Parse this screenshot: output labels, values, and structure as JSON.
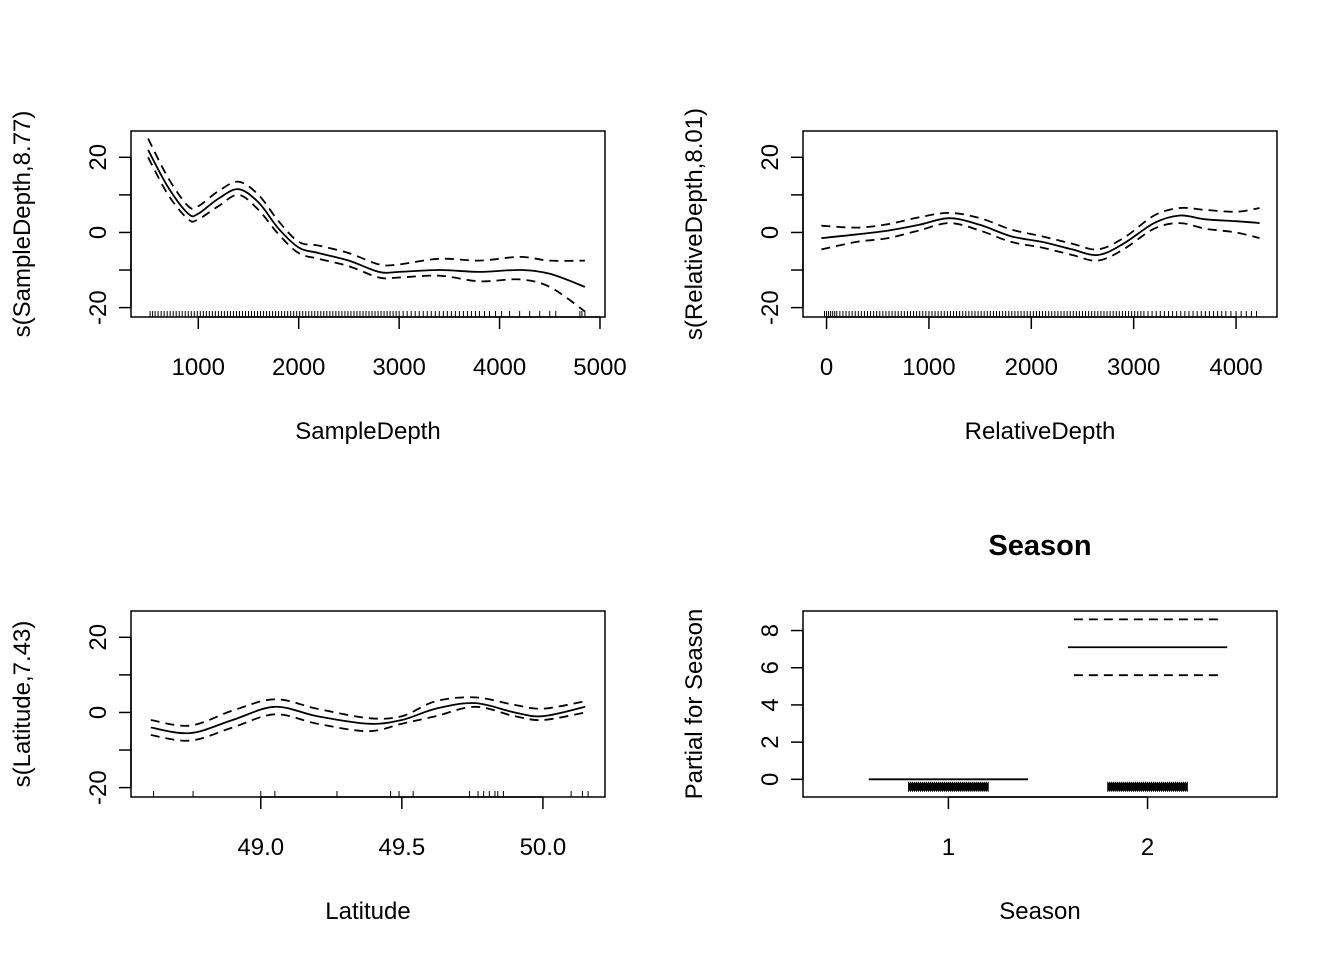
{
  "chart_data": [
    {
      "type": "line",
      "title": "",
      "xlabel": "SampleDepth",
      "ylabel": "s(SampleDepth,8.77)",
      "xlim": [
        330,
        5050
      ],
      "ylim": [
        -22.5,
        27
      ],
      "xticks": [
        1000,
        2000,
        3000,
        4000,
        5000
      ],
      "yticks": [
        -20,
        -10,
        0,
        10,
        20
      ],
      "ytick_labels": [
        -20,
        0,
        20
      ],
      "x": [
        500,
        700,
        900,
        1000,
        1200,
        1400,
        1600,
        1800,
        2000,
        2200,
        2500,
        2800,
        3000,
        3400,
        3800,
        4200,
        4500,
        4850
      ],
      "fit": [
        22,
        12,
        5,
        5,
        9,
        11.5,
        8,
        1,
        -4,
        -5.5,
        -7.5,
        -10.5,
        -10.5,
        -10,
        -10.5,
        -10,
        -11,
        -14.5
      ],
      "upper": [
        25,
        14.5,
        7,
        7,
        11,
        13.5,
        10,
        3,
        -2.5,
        -3.5,
        -5.5,
        -8.5,
        -8.5,
        -7,
        -7.5,
        -6.5,
        -7.5,
        -7.5
      ],
      "lower": [
        20,
        10,
        3.5,
        3.5,
        7,
        10,
        6,
        -0.5,
        -5.5,
        -7,
        -9,
        -12,
        -12,
        -11.5,
        -13,
        -12.5,
        -14.5,
        -21
      ],
      "rug": [
        520,
        545,
        570,
        600,
        630,
        660,
        690,
        720,
        750,
        780,
        810,
        840,
        870,
        900,
        930,
        960,
        990,
        1020,
        1050,
        1080,
        1110,
        1140,
        1170,
        1200,
        1230,
        1260,
        1290,
        1320,
        1350,
        1380,
        1410,
        1440,
        1470,
        1500,
        1530,
        1560,
        1590,
        1620,
        1650,
        1680,
        1710,
        1740,
        1770,
        1800,
        1830,
        1860,
        1890,
        1920,
        1950,
        1980,
        2010,
        2040,
        2070,
        2100,
        2130,
        2160,
        2190,
        2220,
        2250,
        2280,
        2310,
        2340,
        2370,
        2400,
        2430,
        2460,
        2490,
        2520,
        2550,
        2580,
        2610,
        2640,
        2670,
        2700,
        2730,
        2760,
        2790,
        2820,
        2850,
        2880,
        2910,
        2940,
        2970,
        3000,
        3040,
        3080,
        3120,
        3160,
        3200,
        3240,
        3280,
        3320,
        3360,
        3400,
        3440,
        3480,
        3520,
        3560,
        3600,
        3640,
        3680,
        3720,
        3760,
        3800,
        3850,
        3900,
        3960,
        4020,
        4100,
        4200,
        4300,
        4400,
        4500,
        4560,
        4800,
        4820,
        4850
      ]
    },
    {
      "type": "line",
      "title": "",
      "xlabel": "RelativeDepth",
      "ylabel": "s(RelativeDepth,8.01)",
      "xlim": [
        -230,
        4400
      ],
      "ylim": [
        -22.5,
        27
      ],
      "xticks": [
        0,
        1000,
        2000,
        3000,
        4000
      ],
      "yticks": [
        -20,
        -10,
        0,
        10,
        20
      ],
      "ytick_labels": [
        -20,
        0,
        20
      ],
      "x": [
        -50,
        300,
        600,
        900,
        1200,
        1500,
        1800,
        2100,
        2400,
        2650,
        2900,
        3200,
        3450,
        3700,
        4000,
        4230
      ],
      "fit": [
        -1.5,
        -0.5,
        0.5,
        2,
        3.8,
        2,
        -1,
        -2.5,
        -4.5,
        -6,
        -3,
        2.5,
        4.5,
        3.5,
        3,
        2.5
      ],
      "upper": [
        1.8,
        1.3,
        2.2,
        4,
        5.2,
        3.8,
        0.8,
        -1,
        -3,
        -4.5,
        -1.5,
        4.5,
        6.5,
        6,
        5.5,
        6.5
      ],
      "lower": [
        -4.5,
        -2.5,
        -1.5,
        0.5,
        2.5,
        0.5,
        -2.5,
        -4,
        -6,
        -7.5,
        -4.5,
        1,
        2.5,
        1,
        0,
        -1.5
      ],
      "rug": [
        -20,
        0,
        20,
        40,
        60,
        80,
        100,
        130,
        160,
        190,
        220,
        250,
        280,
        310,
        340,
        370,
        400,
        430,
        460,
        490,
        520,
        550,
        580,
        610,
        640,
        670,
        700,
        730,
        760,
        790,
        820,
        850,
        880,
        910,
        940,
        970,
        1000,
        1030,
        1060,
        1090,
        1120,
        1150,
        1180,
        1210,
        1240,
        1270,
        1300,
        1330,
        1360,
        1390,
        1420,
        1450,
        1480,
        1510,
        1540,
        1570,
        1600,
        1630,
        1660,
        1690,
        1720,
        1750,
        1780,
        1810,
        1840,
        1870,
        1900,
        1930,
        1960,
        1990,
        2020,
        2050,
        2080,
        2110,
        2140,
        2170,
        2200,
        2230,
        2260,
        2290,
        2320,
        2350,
        2380,
        2410,
        2440,
        2470,
        2500,
        2530,
        2560,
        2590,
        2620,
        2650,
        2680,
        2710,
        2740,
        2770,
        2800,
        2830,
        2860,
        2890,
        2920,
        2950,
        2980,
        3010,
        3040,
        3070,
        3100,
        3140,
        3180,
        3220,
        3260,
        3300,
        3340,
        3380,
        3420,
        3460,
        3500,
        3540,
        3580,
        3620,
        3660,
        3700,
        3740,
        3780,
        3820,
        3860,
        3900,
        3950,
        4000,
        4050,
        4100,
        4150,
        4200
      ]
    },
    {
      "type": "line",
      "title": "",
      "xlabel": "Latitude",
      "ylabel": "s(Latitude,7.43)",
      "xlim": [
        48.54,
        50.22
      ],
      "ylim": [
        -22.5,
        27
      ],
      "xticks": [
        49.0,
        49.5,
        50.0
      ],
      "xtick_labels": [
        "49.0",
        "49.5",
        "50.0"
      ],
      "yticks": [
        -20,
        -10,
        0,
        10,
        20
      ],
      "ytick_labels": [
        -20,
        0,
        20
      ],
      "x": [
        48.61,
        48.75,
        48.9,
        49.05,
        49.2,
        49.38,
        49.5,
        49.62,
        49.76,
        49.9,
        50.0,
        50.15
      ],
      "fit": [
        -4,
        -5.5,
        -2,
        1.5,
        -1,
        -3,
        -2,
        1,
        2.5,
        0,
        -1,
        1.5
      ],
      "upper": [
        -2,
        -3.5,
        0.5,
        3.5,
        1,
        -1.5,
        -1,
        3,
        4,
        2,
        1,
        3
      ],
      "lower": [
        -6,
        -7.5,
        -4,
        -0.5,
        -3,
        -5,
        -3,
        -1,
        1.5,
        -1,
        -2,
        0
      ],
      "rug": [
        48.62,
        48.76,
        49.0,
        49.05,
        49.27,
        49.46,
        49.49,
        49.54,
        49.74,
        49.77,
        49.79,
        49.81,
        49.83,
        49.84,
        49.86,
        50.1,
        50.14,
        50.16
      ]
    },
    {
      "type": "line",
      "title": "Season",
      "xlabel": "Season",
      "ylabel": "Partial for Season",
      "xlim": [
        0.27,
        2.65
      ],
      "ylim": [
        -0.95,
        9.05
      ],
      "xticks": [
        1,
        2
      ],
      "xtick_labels": [
        "1",
        "2"
      ],
      "yticks": [
        0,
        2,
        4,
        6,
        8
      ],
      "ytick_labels": [
        0,
        2,
        4,
        6,
        8
      ],
      "levels": [
        {
          "x": 1,
          "estimate": 0,
          "upper": null,
          "lower": null
        },
        {
          "x": 2,
          "estimate": 7.1,
          "upper": 8.6,
          "lower": 5.6
        }
      ],
      "rug_y": -0.4
    }
  ]
}
